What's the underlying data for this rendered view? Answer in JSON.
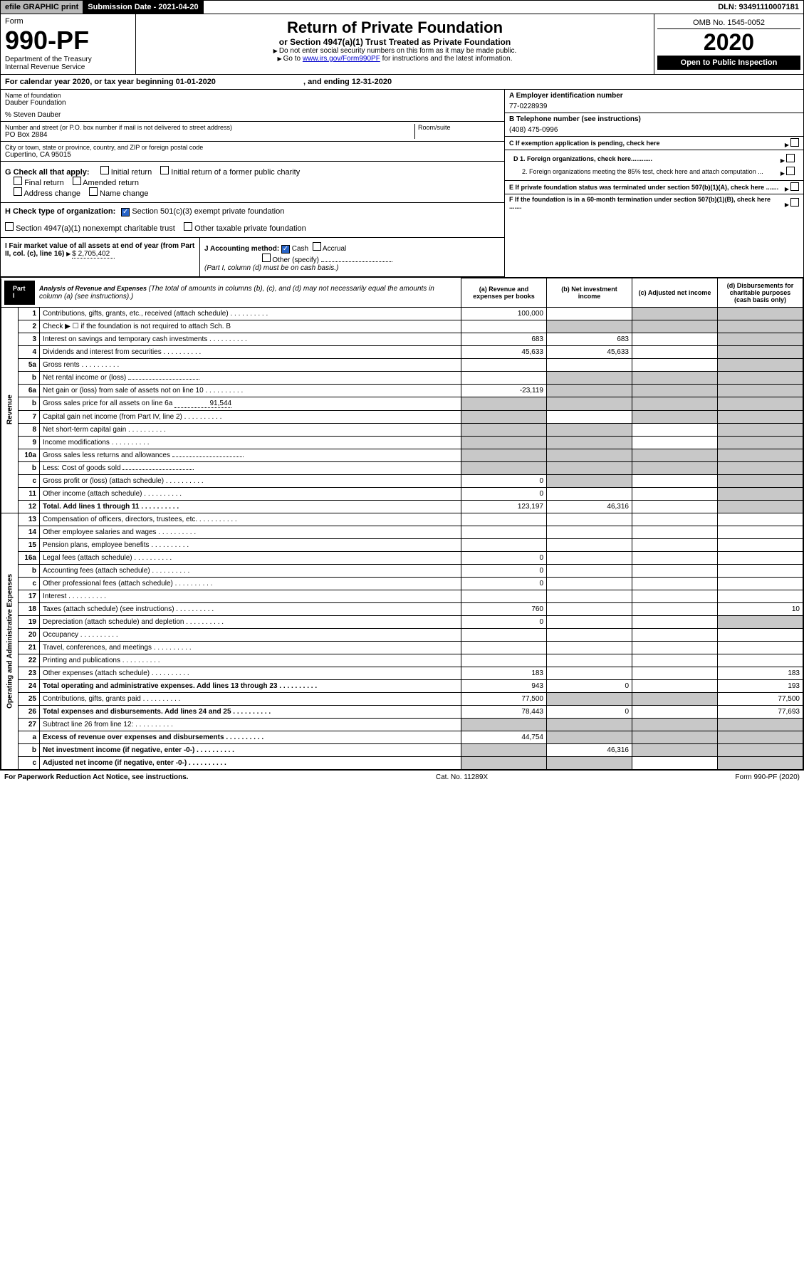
{
  "topbar": {
    "efile": "efile GRAPHIC print",
    "submission": "Submission Date - 2021-04-20",
    "dln": "DLN: 93491110007181"
  },
  "header": {
    "form_label": "Form",
    "form_num": "990-PF",
    "dept": "Department of the Treasury",
    "irs": "Internal Revenue Service",
    "title": "Return of Private Foundation",
    "subtitle": "or Section 4947(a)(1) Trust Treated as Private Foundation",
    "note1": "Do not enter social security numbers on this form as it may be made public.",
    "note2_a": "Go to ",
    "note2_link": "www.irs.gov/Form990PF",
    "note2_b": " for instructions and the latest information.",
    "omb": "OMB No. 1545-0052",
    "year": "2020",
    "open": "Open to Public Inspection"
  },
  "cal_year": {
    "prefix": "For calendar year 2020, or tax year beginning ",
    "begin": "01-01-2020",
    "mid": " , and ending ",
    "end": "12-31-2020"
  },
  "name_block": {
    "label": "Name of foundation",
    "name": "Dauber Foundation",
    "care_of": "% Steven Dauber",
    "addr_label": "Number and street (or P.O. box number if mail is not delivered to street address)",
    "addr": "PO Box 2884",
    "room_label": "Room/suite",
    "city_label": "City or town, state or province, country, and ZIP or foreign postal code",
    "city": "Cupertino, CA  95015"
  },
  "right_info": {
    "a_label": "A Employer identification number",
    "a_val": "77-0228939",
    "b_label": "B Telephone number (see instructions)",
    "b_val": "(408) 475-0996",
    "c_label": "C If exemption application is pending, check here",
    "d1": "D 1. Foreign organizations, check here............",
    "d2": "2. Foreign organizations meeting the 85% test, check here and attach computation ...",
    "e": "E If private foundation status was terminated under section 507(b)(1)(A), check here .......",
    "f": "F If the foundation is in a 60-month termination under section 507(b)(1)(B), check here ......."
  },
  "g": {
    "label": "G Check all that apply:",
    "opts": [
      "Initial return",
      "Initial return of a former public charity",
      "Final return",
      "Amended return",
      "Address change",
      "Name change"
    ]
  },
  "h": {
    "label": "H Check type of organization:",
    "opt1": "Section 501(c)(3) exempt private foundation",
    "opt2": "Section 4947(a)(1) nonexempt charitable trust",
    "opt3": "Other taxable private foundation"
  },
  "i": {
    "label": "I Fair market value of all assets at end of year (from Part II, col. (c), line 16)",
    "val": "$  2,705,402"
  },
  "j": {
    "label": "J Accounting method:",
    "cash": "Cash",
    "accrual": "Accrual",
    "other": "Other (specify)",
    "note": "(Part I, column (d) must be on cash basis.)"
  },
  "part1": {
    "label": "Part I",
    "title": "Analysis of Revenue and Expenses",
    "desc": "(The total of amounts in columns (b), (c), and (d) may not necessarily equal the amounts in column (a) (see instructions).)",
    "col_a": "(a) Revenue and expenses per books",
    "col_b": "(b) Net investment income",
    "col_c": "(c) Adjusted net income",
    "col_d": "(d) Disbursements for charitable purposes (cash basis only)"
  },
  "vert": {
    "revenue": "Revenue",
    "expenses": "Operating and Administrative Expenses"
  },
  "rows": [
    {
      "n": "1",
      "d": "Contributions, gifts, grants, etc., received (attach schedule)",
      "a": "100,000",
      "b": "",
      "c": "g",
      "dcol": "g"
    },
    {
      "n": "2",
      "d": "Check ▶ ☐ if the foundation is not required to attach Sch. B",
      "a": "",
      "b": "g",
      "c": "g",
      "dcol": "g",
      "nodots": true
    },
    {
      "n": "3",
      "d": "Interest on savings and temporary cash investments",
      "a": "683",
      "b": "683",
      "c": "",
      "dcol": "g"
    },
    {
      "n": "4",
      "d": "Dividends and interest from securities",
      "a": "45,633",
      "b": "45,633",
      "c": "",
      "dcol": "g"
    },
    {
      "n": "5a",
      "d": "Gross rents",
      "a": "",
      "b": "",
      "c": "",
      "dcol": "g"
    },
    {
      "n": "b",
      "d": "Net rental income or (loss)",
      "a": "",
      "b": "g",
      "c": "g",
      "dcol": "g",
      "underline": true
    },
    {
      "n": "6a",
      "d": "Net gain or (loss) from sale of assets not on line 10",
      "a": "-23,119",
      "b": "g",
      "c": "g",
      "dcol": "g"
    },
    {
      "n": "b",
      "d": "Gross sales price for all assets on line 6a",
      "inline": "91,544",
      "a": "g",
      "b": "g",
      "c": "g",
      "dcol": "g"
    },
    {
      "n": "7",
      "d": "Capital gain net income (from Part IV, line 2)",
      "a": "g",
      "b": "",
      "c": "g",
      "dcol": "g"
    },
    {
      "n": "8",
      "d": "Net short-term capital gain",
      "a": "g",
      "b": "g",
      "c": "",
      "dcol": "g"
    },
    {
      "n": "9",
      "d": "Income modifications",
      "a": "g",
      "b": "g",
      "c": "",
      "dcol": "g"
    },
    {
      "n": "10a",
      "d": "Gross sales less returns and allowances",
      "a": "g",
      "b": "g",
      "c": "g",
      "dcol": "g",
      "underline": true
    },
    {
      "n": "b",
      "d": "Less: Cost of goods sold",
      "a": "g",
      "b": "g",
      "c": "g",
      "dcol": "g",
      "underline": true
    },
    {
      "n": "c",
      "d": "Gross profit or (loss) (attach schedule)",
      "a": "0",
      "b": "g",
      "c": "",
      "dcol": "g"
    },
    {
      "n": "11",
      "d": "Other income (attach schedule)",
      "a": "0",
      "b": "",
      "c": "",
      "dcol": "g"
    },
    {
      "n": "12",
      "d": "Total. Add lines 1 through 11",
      "a": "123,197",
      "b": "46,316",
      "c": "",
      "dcol": "g",
      "bold": true
    }
  ],
  "exp_rows": [
    {
      "n": "13",
      "d": "Compensation of officers, directors, trustees, etc.",
      "a": "",
      "b": "",
      "c": "",
      "dcol": ""
    },
    {
      "n": "14",
      "d": "Other employee salaries and wages",
      "a": "",
      "b": "",
      "c": "",
      "dcol": ""
    },
    {
      "n": "15",
      "d": "Pension plans, employee benefits",
      "a": "",
      "b": "",
      "c": "",
      "dcol": ""
    },
    {
      "n": "16a",
      "d": "Legal fees (attach schedule)",
      "a": "0",
      "b": "",
      "c": "",
      "dcol": ""
    },
    {
      "n": "b",
      "d": "Accounting fees (attach schedule)",
      "a": "0",
      "b": "",
      "c": "",
      "dcol": ""
    },
    {
      "n": "c",
      "d": "Other professional fees (attach schedule)",
      "a": "0",
      "b": "",
      "c": "",
      "dcol": ""
    },
    {
      "n": "17",
      "d": "Interest",
      "a": "",
      "b": "",
      "c": "",
      "dcol": ""
    },
    {
      "n": "18",
      "d": "Taxes (attach schedule) (see instructions)",
      "a": "760",
      "b": "",
      "c": "",
      "dcol": "10"
    },
    {
      "n": "19",
      "d": "Depreciation (attach schedule) and depletion",
      "a": "0",
      "b": "",
      "c": "",
      "dcol": "g"
    },
    {
      "n": "20",
      "d": "Occupancy",
      "a": "",
      "b": "",
      "c": "",
      "dcol": ""
    },
    {
      "n": "21",
      "d": "Travel, conferences, and meetings",
      "a": "",
      "b": "",
      "c": "",
      "dcol": ""
    },
    {
      "n": "22",
      "d": "Printing and publications",
      "a": "",
      "b": "",
      "c": "",
      "dcol": ""
    },
    {
      "n": "23",
      "d": "Other expenses (attach schedule)",
      "a": "183",
      "b": "",
      "c": "",
      "dcol": "183"
    },
    {
      "n": "24",
      "d": "Total operating and administrative expenses. Add lines 13 through 23",
      "a": "943",
      "b": "0",
      "c": "",
      "dcol": "193",
      "bold": true
    },
    {
      "n": "25",
      "d": "Contributions, gifts, grants paid",
      "a": "77,500",
      "b": "g",
      "c": "g",
      "dcol": "77,500"
    },
    {
      "n": "26",
      "d": "Total expenses and disbursements. Add lines 24 and 25",
      "a": "78,443",
      "b": "0",
      "c": "",
      "dcol": "77,693",
      "bold": true
    },
    {
      "n": "27",
      "d": "Subtract line 26 from line 12:",
      "a": "g",
      "b": "g",
      "c": "g",
      "dcol": "g"
    },
    {
      "n": "a",
      "d": "Excess of revenue over expenses and disbursements",
      "a": "44,754",
      "b": "g",
      "c": "g",
      "dcol": "g",
      "bold": true
    },
    {
      "n": "b",
      "d": "Net investment income (if negative, enter -0-)",
      "a": "g",
      "b": "46,316",
      "c": "g",
      "dcol": "g",
      "bold": true
    },
    {
      "n": "c",
      "d": "Adjusted net income (if negative, enter -0-)",
      "a": "g",
      "b": "g",
      "c": "",
      "dcol": "g",
      "bold": true
    }
  ],
  "footer": {
    "left": "For Paperwork Reduction Act Notice, see instructions.",
    "mid": "Cat. No. 11289X",
    "right": "Form 990-PF (2020)"
  }
}
